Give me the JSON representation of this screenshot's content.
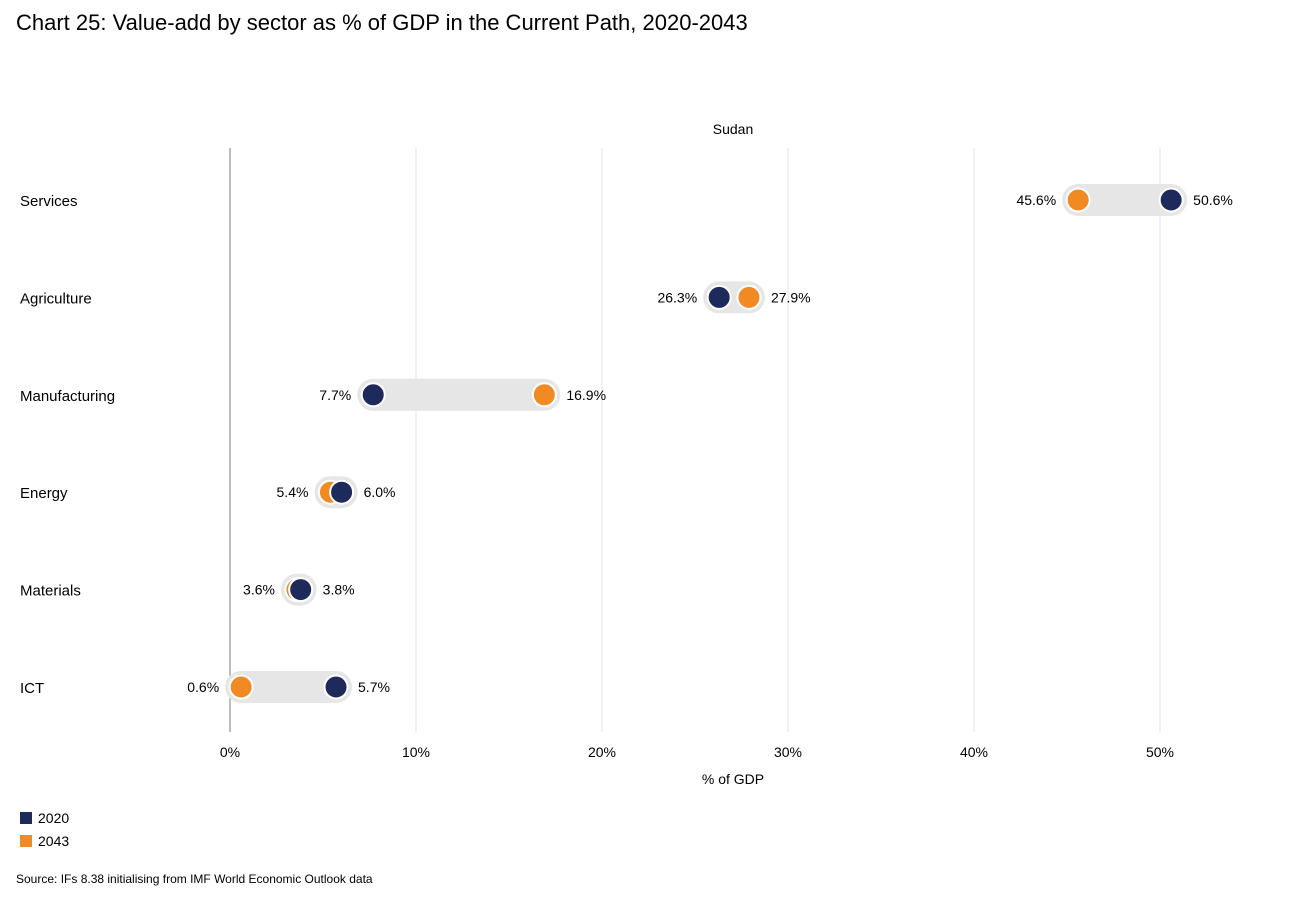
{
  "chart_data": {
    "type": "dumbbell",
    "title": "Chart 25: Value-add by sector as % of GDP in the Current Path, 2020-2043",
    "panel_label": "Sudan",
    "xlabel": "% of GDP",
    "xlim": [
      0,
      50
    ],
    "x_ticks": [
      0,
      10,
      20,
      30,
      40,
      50
    ],
    "x_tick_labels": [
      "0%",
      "10%",
      "20%",
      "30%",
      "40%",
      "50%"
    ],
    "grid": true,
    "legend_placement": "bottom-left",
    "categories": [
      "Services",
      "Agriculture",
      "Manufacturing",
      "Energy",
      "Materials",
      "ICT"
    ],
    "series": [
      {
        "name": "2020",
        "color": "#1d2a5b",
        "values": [
          50.6,
          26.3,
          7.7,
          6.0,
          3.8,
          5.7
        ],
        "labels": [
          "50.6%",
          "26.3%",
          "7.7%",
          "6.0%",
          "3.8%",
          "5.7%"
        ]
      },
      {
        "name": "2043",
        "color": "#f28a24",
        "values": [
          45.6,
          27.9,
          16.9,
          5.4,
          3.6,
          0.6
        ],
        "labels": [
          "45.6%",
          "27.9%",
          "16.9%",
          "5.4%",
          "3.6%",
          "0.6%"
        ]
      }
    ]
  },
  "source": "Source: IFs 8.38 initialising from IMF World Economic Outlook data"
}
